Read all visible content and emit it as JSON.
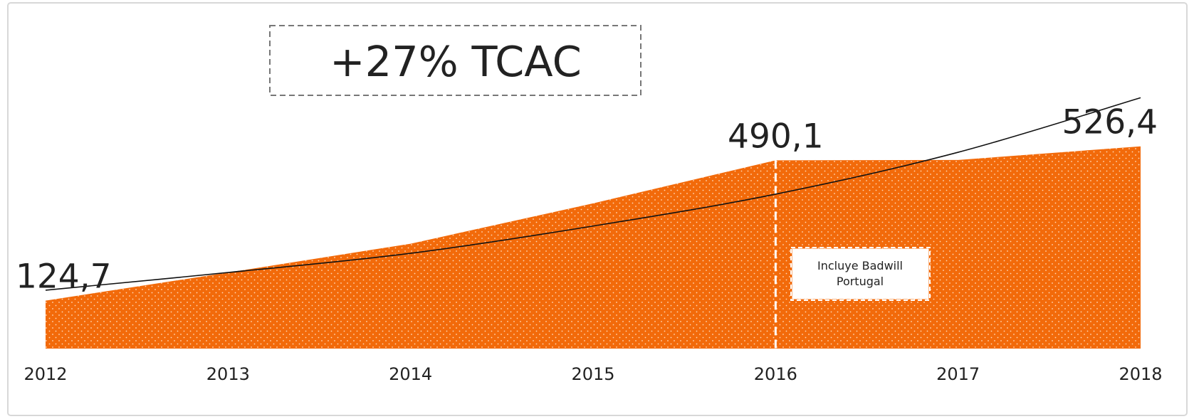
{
  "chart_data": {
    "type": "area",
    "categories": [
      "2012",
      "2013",
      "2014",
      "2015",
      "2016",
      "2017",
      "2018"
    ],
    "values": [
      124.7,
      198,
      273,
      378,
      490.1,
      491,
      526.4
    ],
    "value_labels": [
      "124,7",
      null,
      null,
      null,
      "490,1",
      null,
      "526,4"
    ],
    "color": "#f26a0a",
    "trend": {
      "values": [
        152,
        198,
        248,
        319,
        402,
        511,
        653
      ],
      "color": "#111111"
    },
    "ylim": [
      0,
      700
    ],
    "annotations": [
      {
        "text": "+27% TCAC"
      },
      {
        "lines": [
          "Incluye Badwill",
          "Portugal"
        ],
        "category": 4
      }
    ]
  }
}
